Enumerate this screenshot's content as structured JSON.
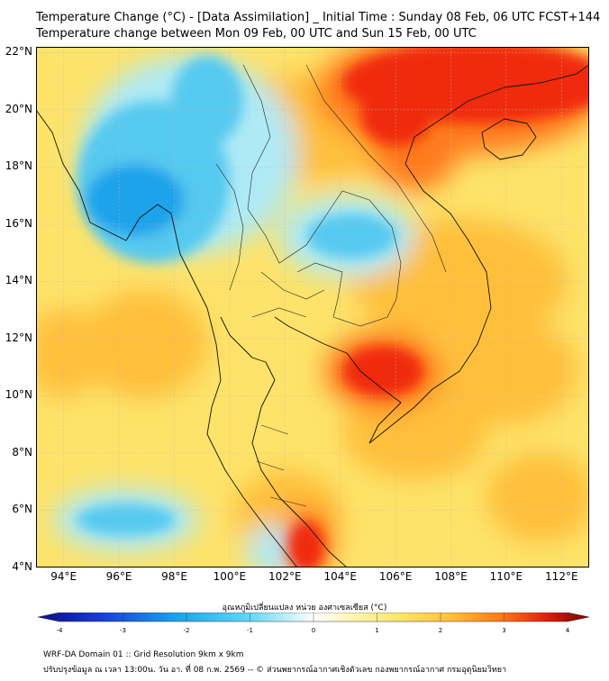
{
  "header": {
    "title_line1": "Temperature Change (°C) - [Data Assimilation] _ Initial Time : Sunday 08 Feb, 06 UTC FCST+144",
    "title_line2": "Temperature change between Mon 09 Feb, 00 UTC and Sun 15 Feb, 00 UTC"
  },
  "map": {
    "lat_labels": [
      "22°N",
      "20°N",
      "18°N",
      "16°N",
      "14°N",
      "12°N",
      "10°N",
      "8°N",
      "6°N",
      "4°N"
    ],
    "lon_labels": [
      "94°E",
      "96°E",
      "98°E",
      "100°E",
      "102°E",
      "104°E",
      "106°E",
      "108°E",
      "110°E",
      "112°E"
    ],
    "lat_values": [
      22,
      20,
      18,
      16,
      14,
      12,
      10,
      8,
      6,
      4
    ],
    "lon_values": [
      94,
      96,
      98,
      100,
      102,
      104,
      106,
      108,
      110,
      112
    ],
    "lon_range": [
      93,
      113
    ],
    "lat_range": [
      4,
      22.2
    ],
    "colors": {
      "base": "#fde36a",
      "warm": "#ffbf3a",
      "hot": "#ff7a1a",
      "very_hot": "#f02a10",
      "cool": "#aeeaf6",
      "cold": "#56c9f0",
      "very_cold": "#1aa3ea"
    }
  },
  "colorbar": {
    "title": "อุณหภูมิเปลี่ยนแปลง หน่วย องศาเซลเซียส (°C)",
    "tick_labels": [
      "-4",
      "-3",
      "-2",
      "-1",
      "0",
      "1",
      "2",
      "3",
      "4"
    ],
    "min": -4,
    "max": 4
  },
  "footer": {
    "line1": "WRF-DA Domain 01 :: Grid Resolution 9km x 9km",
    "line2": "ปรับปรุงข้อมูล ณ เวลา 13:00น. วัน อา. ที่ 08 ก.พ. 2569 -- © ส่วนพยากรณ์อากาศเชิงตัวเลข กองพยากรณ์อากาศ กรมอุตุนิยมวิทยา"
  }
}
